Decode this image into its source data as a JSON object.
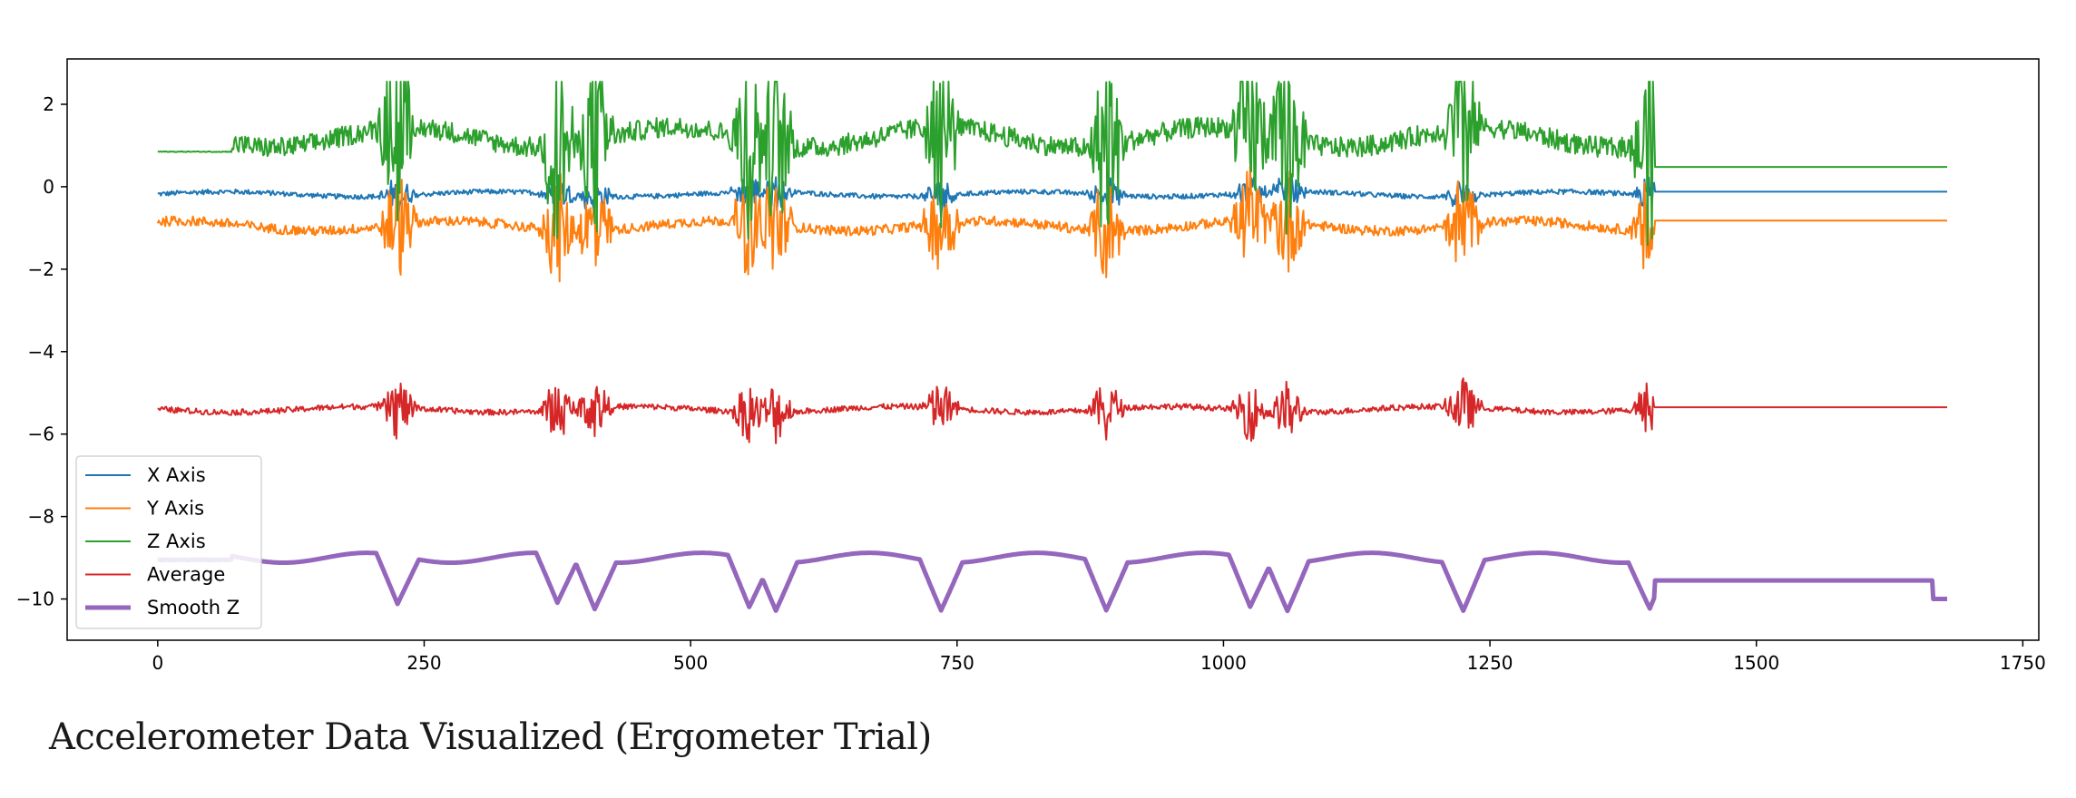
{
  "caption": "Accelerometer Data Visualized (Ergometer Trial)",
  "chart_data": {
    "type": "line",
    "title": "",
    "xlabel": "",
    "ylabel": "",
    "xlim": [
      -85,
      1765
    ],
    "ylim": [
      -11,
      3.1
    ],
    "xticks": [
      0,
      250,
      500,
      750,
      1000,
      1250,
      1500,
      1750
    ],
    "yticks": [
      2,
      0,
      -2,
      -4,
      -6,
      -8,
      -10
    ],
    "grid": false,
    "legend": "lower-left",
    "n_samples": 1680,
    "active_until": 1405,
    "bursts": [
      225,
      375,
      410,
      555,
      580,
      735,
      890,
      1025,
      1060,
      1225,
      1400
    ],
    "series": [
      {
        "name": "X Axis",
        "color": "#1f77b4",
        "baseline": -0.18,
        "noise": 0.06,
        "spike": 0.5,
        "end_value": -0.12,
        "width": 2
      },
      {
        "name": "Y Axis",
        "color": "#ff7f0e",
        "baseline": -0.95,
        "noise": 0.12,
        "spike": 1.5,
        "min": -3.1,
        "max": 0.5,
        "end_value": -0.82,
        "width": 2
      },
      {
        "name": "Z Axis",
        "color": "#2ca02c",
        "baseline": 1.2,
        "start_value": 0.85,
        "noise": 0.25,
        "spike": 2.6,
        "min": -3.0,
        "max": 2.55,
        "end_value": 0.48,
        "width": 2
      },
      {
        "name": "Average",
        "color": "#d62728",
        "baseline": -5.4,
        "noise": 0.07,
        "spike": 0.8,
        "min": -6.3,
        "max": -4.3,
        "end_value": -5.35,
        "width": 2
      },
      {
        "name": "Smooth Z",
        "color": "#9467bd",
        "baseline": -9.0,
        "start_value": -9.05,
        "noise": 0.1,
        "spike": 1.3,
        "min": -10.35,
        "max": -8.3,
        "end_value": -9.55,
        "final_value": -10.0,
        "width": 5
      }
    ]
  }
}
